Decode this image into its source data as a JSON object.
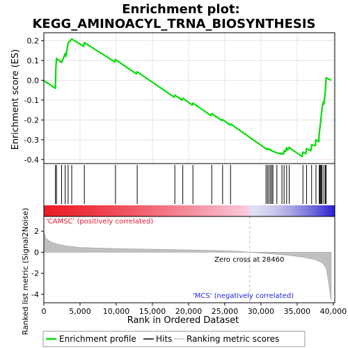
{
  "title_line1": "Enrichment plot:",
  "title_line2": "KEGG_AMINOACYL_TRNA_BIOSYNTHESIS",
  "chart_data": {
    "type": "line",
    "es_panel": {
      "ylabel": "Enrichment score (ES)",
      "ylim": [
        -0.42,
        0.24
      ],
      "yticks": [
        -0.4,
        -0.3,
        -0.2,
        -0.1,
        0.0,
        0.1,
        0.2
      ],
      "ytick_labels": [
        "-0.4",
        "-0.3",
        "-0.2",
        "-0.1",
        "0.0",
        "0.1",
        "0.2"
      ],
      "series": [
        {
          "name": "Enrichment profile",
          "color": "#00dd00",
          "x": [
            0,
            1600,
            1650,
            1750,
            2450,
            2950,
            3050,
            3350,
            3850,
            5500,
            5600,
            9800,
            9900,
            12800,
            12900,
            18000,
            18100,
            19100,
            19200,
            20500,
            20600,
            23100,
            23200,
            24600,
            24700,
            25700,
            25800,
            30600,
            30700,
            30800,
            30900,
            31000,
            31100,
            31200,
            31300,
            31400,
            31500,
            31650,
            32100,
            32200,
            32800,
            32900,
            33100,
            33200,
            33400,
            33550,
            33700,
            33900,
            34100,
            35700,
            35800,
            36200,
            36300,
            36900,
            37000,
            37500,
            37600,
            38000,
            38050,
            38150,
            38250,
            38350,
            38450,
            38600,
            38700,
            38800,
            38900,
            39000,
            39700
          ],
          "y": [
            -0.002,
            -0.04,
            0.06,
            0.11,
            0.09,
            0.135,
            0.12,
            0.188,
            0.208,
            0.172,
            0.19,
            0.093,
            0.105,
            0.032,
            0.043,
            -0.085,
            -0.075,
            -0.1,
            -0.09,
            -0.125,
            -0.115,
            -0.178,
            -0.168,
            -0.203,
            -0.198,
            -0.225,
            -0.22,
            -0.343,
            -0.347,
            -0.344,
            -0.348,
            -0.346,
            -0.35,
            -0.348,
            -0.352,
            -0.351,
            -0.355,
            -0.358,
            -0.365,
            -0.366,
            -0.372,
            -0.368,
            -0.373,
            -0.355,
            -0.36,
            -0.34,
            -0.352,
            -0.338,
            -0.345,
            -0.385,
            -0.362,
            -0.37,
            -0.345,
            -0.355,
            -0.325,
            -0.33,
            -0.3,
            -0.31,
            -0.27,
            -0.24,
            -0.21,
            -0.17,
            -0.14,
            -0.11,
            -0.12,
            -0.09,
            -0.05,
            0.013,
            0.0
          ]
        }
      ]
    },
    "hits": {
      "name": "Hits",
      "x": [
        1600,
        1750,
        2450,
        2950,
        3350,
        3850,
        5600,
        9900,
        12900,
        18100,
        19200,
        20600,
        23200,
        24700,
        25800,
        30700,
        30900,
        31100,
        31300,
        31500,
        31650,
        32200,
        32900,
        33200,
        33550,
        33900,
        35800,
        36300,
        37000,
        37600,
        38050,
        38150,
        38250,
        38350,
        38450,
        38700,
        38900,
        39000
      ]
    },
    "metric_panel": {
      "name": "Ranking metric scores",
      "ylabel": "Ranked list metric (Signal2Noise)",
      "ylim": [
        -4.8,
        3.4
      ],
      "yticks": [
        -4,
        -2,
        0,
        2
      ],
      "ytick_labels": [
        "-4",
        "-2",
        "0",
        "2"
      ],
      "profile_x": [
        0,
        300,
        1000,
        2000,
        3000,
        5000,
        8000,
        12000,
        16000,
        20000,
        24000,
        27000,
        28460,
        30000,
        32000,
        34000,
        36000,
        37500,
        38500,
        39000,
        39300,
        39500,
        39700
      ],
      "profile_y": [
        1.9,
        1.3,
        0.95,
        0.75,
        0.6,
        0.45,
        0.38,
        0.32,
        0.27,
        0.22,
        0.16,
        0.08,
        0.0,
        -0.08,
        -0.18,
        -0.3,
        -0.48,
        -0.7,
        -1.0,
        -1.5,
        -2.6,
        -3.6,
        -4.6
      ],
      "zero_cross_label": "Zero cross at 28460",
      "zero_cross_x": 28460,
      "positive_label": "'CAMSC' (positively correlated)",
      "negative_label": "'MCS' (negatively correlated)"
    },
    "x_axis": {
      "xlabel": "Rank in Ordered Dataset",
      "xlim": [
        0,
        40200
      ],
      "xticks": [
        0,
        5000,
        10000,
        15000,
        20000,
        25000,
        30000,
        35000,
        40000
      ],
      "xtick_labels": [
        "0",
        "5,000",
        "10,000",
        "15,000",
        "20,000",
        "25,000",
        "30,000",
        "35,000",
        "40,000"
      ]
    },
    "legend": {
      "placement": "bottom",
      "items": [
        "Enrichment profile",
        "Hits",
        "Ranking metric scores"
      ]
    }
  }
}
